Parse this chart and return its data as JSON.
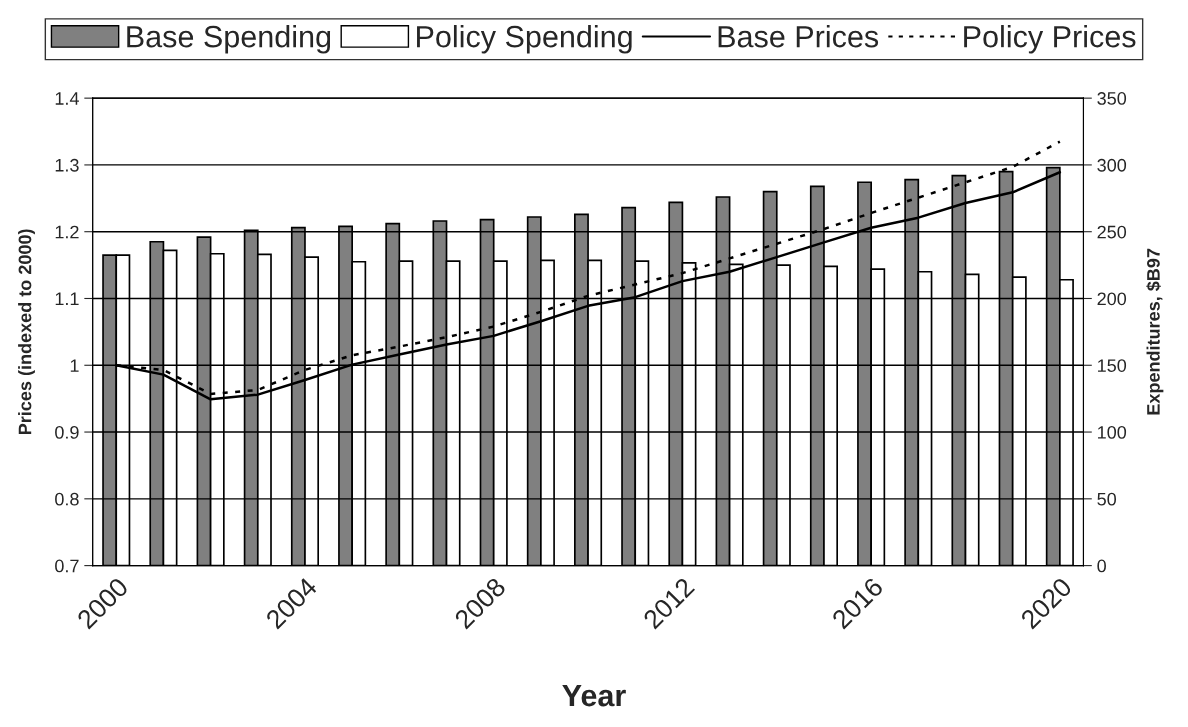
{
  "chart_data": {
    "type": "bar",
    "xlabel": "Year",
    "ylabel": "Prices (indexed to 2000)",
    "y2label": "Expenditures, $B97",
    "categories": [
      "2000",
      null,
      null,
      null,
      "2004",
      null,
      null,
      null,
      "2008",
      null,
      null,
      null,
      "2012",
      null,
      null,
      null,
      "2016",
      null,
      null,
      null,
      "2020"
    ],
    "series": [
      {
        "name": "Base Spending",
        "axis": "y2",
        "color": "#808080",
        "values": [
          232.5,
          242.5,
          246,
          251,
          253,
          254,
          256,
          258,
          259,
          261,
          263,
          268,
          272,
          276,
          280,
          284,
          287,
          289,
          292,
          295,
          298
        ]
      },
      {
        "name": "Policy Spending",
        "axis": "y2",
        "color": "#ffffff",
        "values": [
          232.5,
          236,
          233.5,
          233,
          231,
          227.5,
          228,
          228,
          228,
          228.5,
          228.5,
          228,
          226.7,
          225.5,
          225,
          224,
          222,
          220,
          218,
          216,
          214
        ]
      },
      {
        "name": "Base Prices",
        "type": "line",
        "axis": "y",
        "color": "#000000",
        "line_style": "solid",
        "values": [
          1.0,
          0.986,
          0.949,
          0.956,
          0.978,
          1.001,
          1.016,
          1.031,
          1.044,
          1.066,
          1.089,
          1.102,
          1.126,
          1.14,
          1.162,
          1.184,
          1.206,
          1.221,
          1.243,
          1.259,
          1.289
        ]
      },
      {
        "name": "Policy Prices",
        "type": "line",
        "axis": "y",
        "color": "#000000",
        "line_style": "dotted",
        "values": [
          1.0,
          0.993,
          0.957,
          0.963,
          0.993,
          1.015,
          1.028,
          1.042,
          1.058,
          1.08,
          1.104,
          1.121,
          1.138,
          1.16,
          1.182,
          1.204,
          1.228,
          1.251,
          1.274,
          1.297,
          1.335
        ]
      }
    ],
    "ylim": [
      0.7,
      1.4
    ],
    "yticks": [
      0.7,
      0.8,
      0.9,
      1.0,
      1.1,
      1.2,
      1.3,
      1.4
    ],
    "y2lim": [
      0,
      350
    ],
    "y2ticks": [
      0,
      50,
      100,
      150,
      200,
      250,
      300,
      350
    ],
    "grid": "y",
    "legend": "top",
    "marker": "none"
  }
}
